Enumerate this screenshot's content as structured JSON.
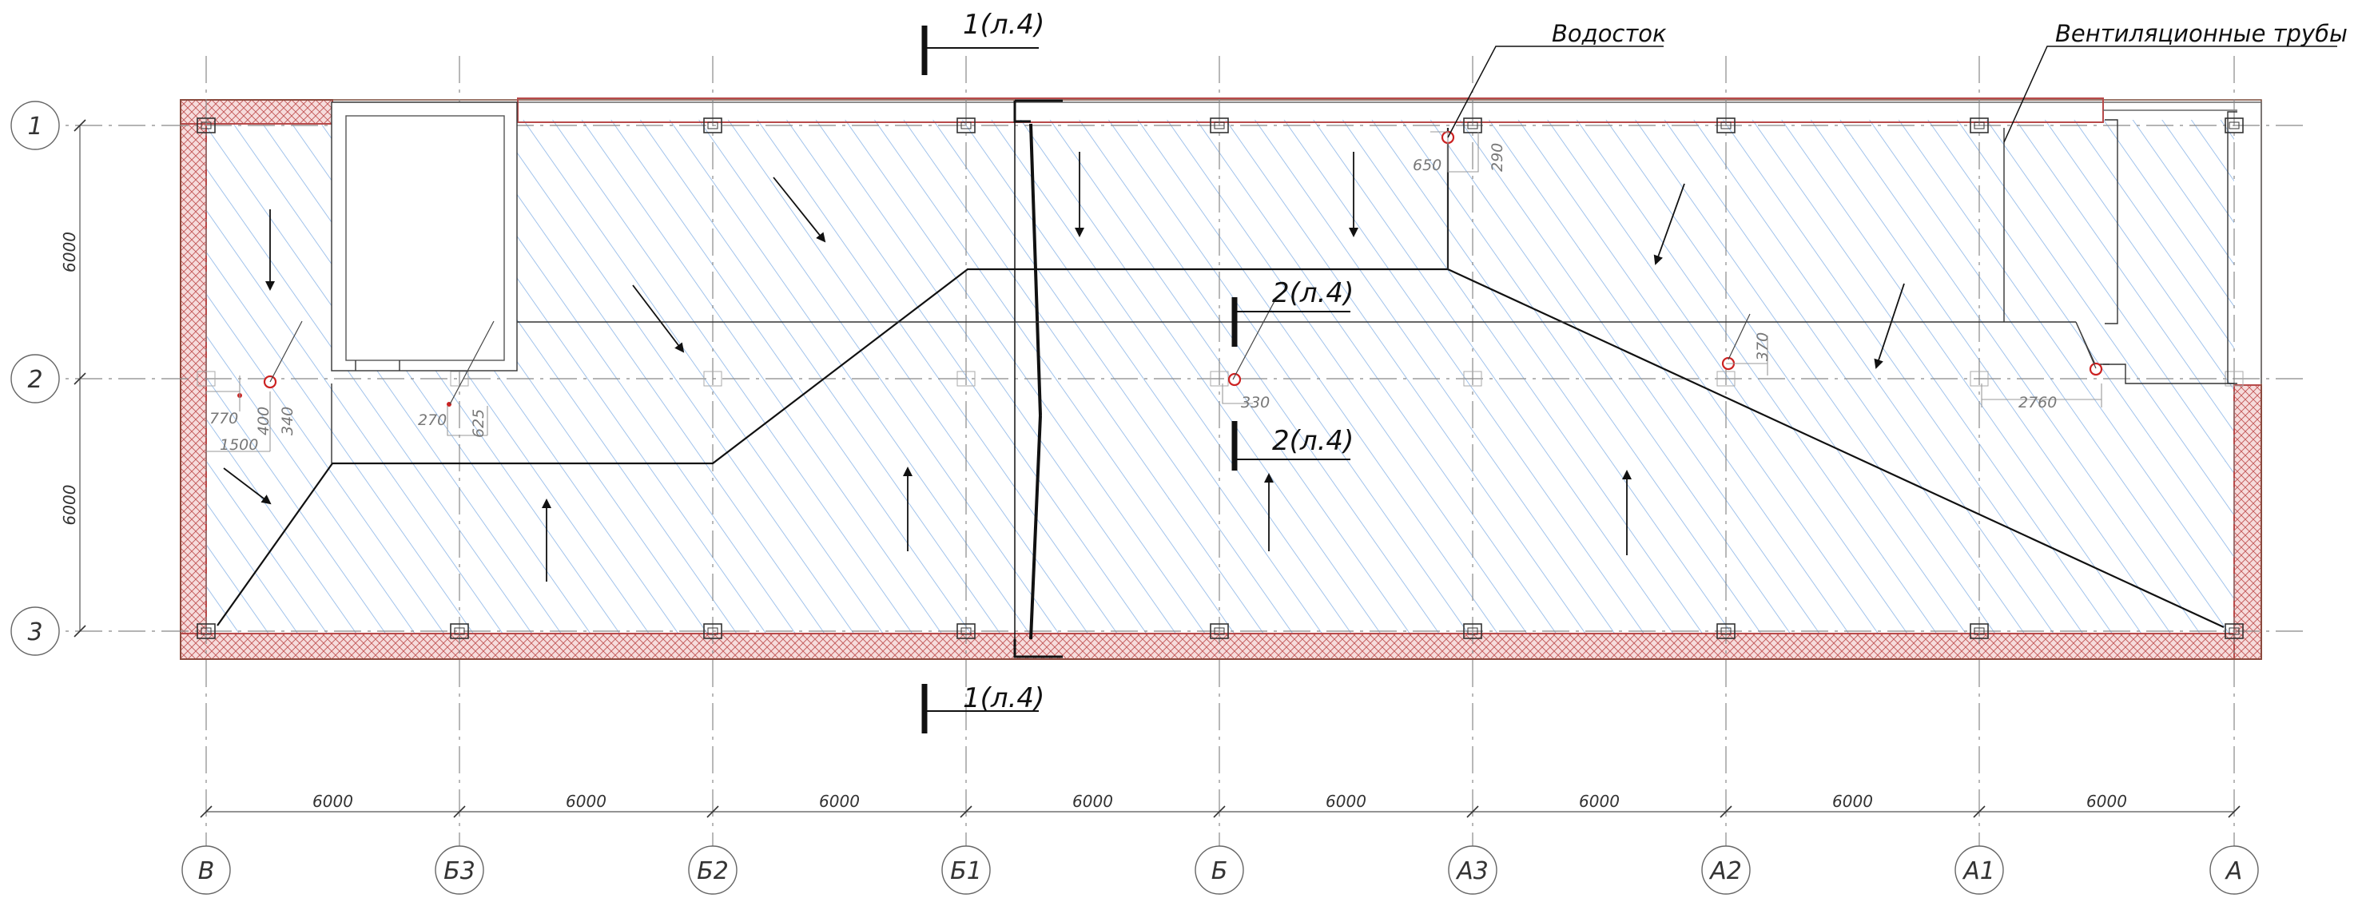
{
  "drawing": {
    "axes_columns": [
      "В",
      "Б3",
      "Б2",
      "Б1",
      "Б",
      "А3",
      "А2",
      "А1",
      "А"
    ],
    "axes_rows": [
      "1",
      "2",
      "3"
    ],
    "column_spacings": [
      "6000",
      "6000",
      "6000",
      "6000",
      "6000",
      "6000",
      "6000",
      "6000"
    ],
    "row_spacings": [
      "6000",
      "6000"
    ],
    "section_labels": {
      "top": "1(л.4)",
      "bottom": "1(л.4)",
      "mid_upper": "2(л.4)",
      "mid_lower": "2(л.4)"
    },
    "callouts": {
      "drain": "Водосток",
      "vent": "Вентиляционные трубы"
    },
    "local_dims": {
      "d770": "770",
      "d400": "400",
      "d340": "340",
      "d1500": "1500",
      "d270": "270",
      "d625": "625",
      "d330": "330",
      "d650": "650",
      "d290": "290",
      "d370": "370",
      "d2760": "2760"
    },
    "colors": {
      "hatch": "#8ab4e6",
      "wall": "#b84a4a",
      "line": "#111111",
      "grid": "#888888",
      "drain": "#cc2222"
    }
  }
}
